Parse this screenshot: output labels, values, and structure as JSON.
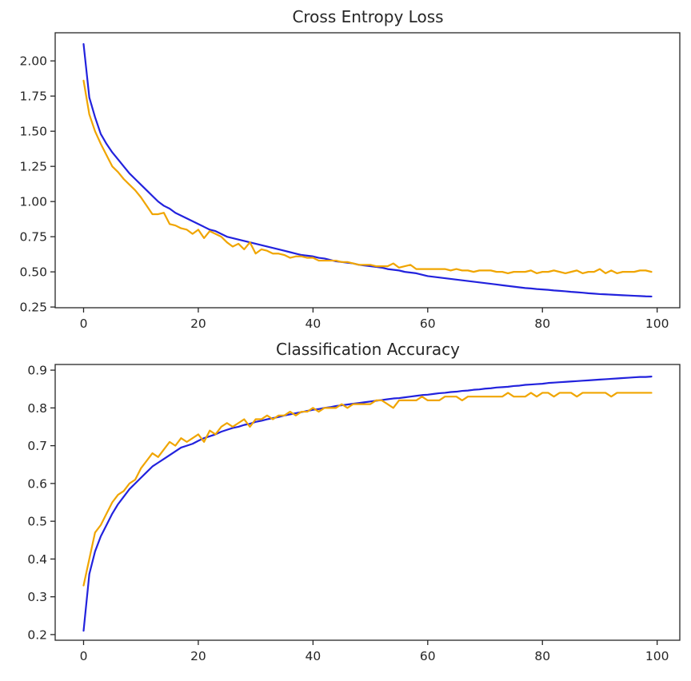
{
  "chart_data": [
    {
      "type": "line",
      "title": "Cross Entropy Loss",
      "xlabel": "",
      "ylabel": "",
      "xlim": [
        -4.95,
        103.95
      ],
      "ylim": [
        0.245,
        2.2
      ],
      "xticks": [
        0,
        20,
        40,
        60,
        80,
        100
      ],
      "xtick_labels": [
        "0",
        "20",
        "40",
        "60",
        "80",
        "100"
      ],
      "yticks": [
        0.25,
        0.5,
        0.75,
        1.0,
        1.25,
        1.5,
        1.75,
        2.0
      ],
      "ytick_labels": [
        "0.25",
        "0.50",
        "0.75",
        "1.00",
        "1.25",
        "1.50",
        "1.75",
        "2.00"
      ],
      "grid": false,
      "series": [
        {
          "color": "#2222dd",
          "x": [
            0,
            1,
            2,
            3,
            4,
            5,
            6,
            7,
            8,
            9,
            10,
            11,
            12,
            13,
            14,
            15,
            16,
            17,
            18,
            19,
            20,
            21,
            22,
            23,
            24,
            25,
            26,
            27,
            28,
            29,
            30,
            31,
            32,
            33,
            34,
            35,
            36,
            37,
            38,
            39,
            40,
            41,
            42,
            43,
            44,
            45,
            46,
            47,
            48,
            49,
            50,
            51,
            52,
            53,
            54,
            55,
            56,
            57,
            58,
            59,
            60,
            61,
            62,
            63,
            64,
            65,
            66,
            67,
            68,
            69,
            70,
            71,
            72,
            73,
            74,
            75,
            76,
            77,
            78,
            79,
            80,
            81,
            82,
            83,
            84,
            85,
            86,
            87,
            88,
            89,
            90,
            91,
            92,
            93,
            94,
            95,
            96,
            97,
            98,
            99
          ],
          "y": [
            2.12,
            1.74,
            1.6,
            1.48,
            1.41,
            1.35,
            1.3,
            1.25,
            1.2,
            1.16,
            1.12,
            1.08,
            1.04,
            1.0,
            0.97,
            0.95,
            0.92,
            0.9,
            0.88,
            0.86,
            0.84,
            0.82,
            0.8,
            0.79,
            0.77,
            0.75,
            0.74,
            0.73,
            0.72,
            0.71,
            0.7,
            0.69,
            0.68,
            0.67,
            0.66,
            0.65,
            0.64,
            0.63,
            0.62,
            0.615,
            0.61,
            0.6,
            0.595,
            0.585,
            0.575,
            0.57,
            0.565,
            0.56,
            0.55,
            0.545,
            0.54,
            0.535,
            0.53,
            0.52,
            0.515,
            0.51,
            0.5,
            0.495,
            0.49,
            0.48,
            0.47,
            0.465,
            0.46,
            0.455,
            0.45,
            0.445,
            0.44,
            0.435,
            0.43,
            0.425,
            0.42,
            0.415,
            0.41,
            0.405,
            0.4,
            0.395,
            0.39,
            0.385,
            0.382,
            0.378,
            0.375,
            0.372,
            0.368,
            0.365,
            0.362,
            0.358,
            0.355,
            0.352,
            0.348,
            0.345,
            0.342,
            0.34,
            0.338,
            0.336,
            0.334,
            0.332,
            0.33,
            0.328,
            0.326,
            0.325
          ]
        },
        {
          "color": "#f0a500",
          "x": [
            0,
            1,
            2,
            3,
            4,
            5,
            6,
            7,
            8,
            9,
            10,
            11,
            12,
            13,
            14,
            15,
            16,
            17,
            18,
            19,
            20,
            21,
            22,
            23,
            24,
            25,
            26,
            27,
            28,
            29,
            30,
            31,
            32,
            33,
            34,
            35,
            36,
            37,
            38,
            39,
            40,
            41,
            42,
            43,
            44,
            45,
            46,
            47,
            48,
            49,
            50,
            51,
            52,
            53,
            54,
            55,
            56,
            57,
            58,
            59,
            60,
            61,
            62,
            63,
            64,
            65,
            66,
            67,
            68,
            69,
            70,
            71,
            72,
            73,
            74,
            75,
            76,
            77,
            78,
            79,
            80,
            81,
            82,
            83,
            84,
            85,
            86,
            87,
            88,
            89,
            90,
            91,
            92,
            93,
            94,
            95,
            96,
            97,
            98,
            99
          ],
          "y": [
            1.86,
            1.62,
            1.5,
            1.41,
            1.33,
            1.25,
            1.21,
            1.16,
            1.12,
            1.08,
            1.03,
            0.97,
            0.91,
            0.91,
            0.92,
            0.84,
            0.83,
            0.81,
            0.8,
            0.77,
            0.8,
            0.74,
            0.79,
            0.77,
            0.75,
            0.71,
            0.68,
            0.7,
            0.66,
            0.71,
            0.63,
            0.66,
            0.65,
            0.63,
            0.63,
            0.62,
            0.6,
            0.61,
            0.61,
            0.6,
            0.6,
            0.58,
            0.58,
            0.58,
            0.58,
            0.57,
            0.57,
            0.56,
            0.55,
            0.55,
            0.55,
            0.54,
            0.54,
            0.54,
            0.56,
            0.53,
            0.54,
            0.55,
            0.52,
            0.52,
            0.52,
            0.52,
            0.52,
            0.52,
            0.51,
            0.52,
            0.51,
            0.51,
            0.5,
            0.51,
            0.51,
            0.51,
            0.5,
            0.5,
            0.49,
            0.5,
            0.5,
            0.5,
            0.51,
            0.49,
            0.5,
            0.5,
            0.51,
            0.5,
            0.49,
            0.5,
            0.51,
            0.49,
            0.5,
            0.5,
            0.52,
            0.49,
            0.51,
            0.49,
            0.5,
            0.5,
            0.5,
            0.51,
            0.51,
            0.5
          ]
        }
      ]
    },
    {
      "type": "line",
      "title": "Classification Accuracy",
      "xlabel": "",
      "ylabel": "",
      "xlim": [
        -4.95,
        103.95
      ],
      "ylim": [
        0.185,
        0.915
      ],
      "xticks": [
        0,
        20,
        40,
        60,
        80,
        100
      ],
      "xtick_labels": [
        "0",
        "20",
        "40",
        "60",
        "80",
        "100"
      ],
      "yticks": [
        0.2,
        0.3,
        0.4,
        0.5,
        0.6,
        0.7,
        0.8,
        0.9
      ],
      "ytick_labels": [
        "0.2",
        "0.3",
        "0.4",
        "0.5",
        "0.6",
        "0.7",
        "0.8",
        "0.9"
      ],
      "grid": false,
      "series": [
        {
          "color": "#2222dd",
          "x": [
            0,
            1,
            2,
            3,
            4,
            5,
            6,
            7,
            8,
            9,
            10,
            11,
            12,
            13,
            14,
            15,
            16,
            17,
            18,
            19,
            20,
            21,
            22,
            23,
            24,
            25,
            26,
            27,
            28,
            29,
            30,
            31,
            32,
            33,
            34,
            35,
            36,
            37,
            38,
            39,
            40,
            41,
            42,
            43,
            44,
            45,
            46,
            47,
            48,
            49,
            50,
            51,
            52,
            53,
            54,
            55,
            56,
            57,
            58,
            59,
            60,
            61,
            62,
            63,
            64,
            65,
            66,
            67,
            68,
            69,
            70,
            71,
            72,
            73,
            74,
            75,
            76,
            77,
            78,
            79,
            80,
            81,
            82,
            83,
            84,
            85,
            86,
            87,
            88,
            89,
            90,
            91,
            92,
            93,
            94,
            95,
            96,
            97,
            98,
            99
          ],
          "y": [
            0.21,
            0.36,
            0.42,
            0.46,
            0.49,
            0.52,
            0.545,
            0.565,
            0.585,
            0.6,
            0.615,
            0.63,
            0.645,
            0.655,
            0.665,
            0.675,
            0.685,
            0.695,
            0.7,
            0.705,
            0.713,
            0.72,
            0.725,
            0.73,
            0.737,
            0.742,
            0.747,
            0.75,
            0.755,
            0.758,
            0.763,
            0.766,
            0.77,
            0.773,
            0.776,
            0.78,
            0.783,
            0.786,
            0.789,
            0.792,
            0.795,
            0.797,
            0.8,
            0.802,
            0.805,
            0.807,
            0.809,
            0.811,
            0.813,
            0.815,
            0.817,
            0.819,
            0.821,
            0.823,
            0.825,
            0.826,
            0.828,
            0.83,
            0.832,
            0.834,
            0.835,
            0.837,
            0.839,
            0.84,
            0.842,
            0.843,
            0.845,
            0.846,
            0.848,
            0.849,
            0.851,
            0.852,
            0.854,
            0.855,
            0.856,
            0.858,
            0.859,
            0.861,
            0.862,
            0.863,
            0.864,
            0.866,
            0.867,
            0.868,
            0.869,
            0.87,
            0.871,
            0.872,
            0.873,
            0.874,
            0.875,
            0.876,
            0.877,
            0.878,
            0.879,
            0.88,
            0.881,
            0.882,
            0.882,
            0.883
          ]
        },
        {
          "color": "#f0a500",
          "x": [
            0,
            1,
            2,
            3,
            4,
            5,
            6,
            7,
            8,
            9,
            10,
            11,
            12,
            13,
            14,
            15,
            16,
            17,
            18,
            19,
            20,
            21,
            22,
            23,
            24,
            25,
            26,
            27,
            28,
            29,
            30,
            31,
            32,
            33,
            34,
            35,
            36,
            37,
            38,
            39,
            40,
            41,
            42,
            43,
            44,
            45,
            46,
            47,
            48,
            49,
            50,
            51,
            52,
            53,
            54,
            55,
            56,
            57,
            58,
            59,
            60,
            61,
            62,
            63,
            64,
            65,
            66,
            67,
            68,
            69,
            70,
            71,
            72,
            73,
            74,
            75,
            76,
            77,
            78,
            79,
            80,
            81,
            82,
            83,
            84,
            85,
            86,
            87,
            88,
            89,
            90,
            91,
            92,
            93,
            94,
            95,
            96,
            97,
            98,
            99
          ],
          "y": [
            0.33,
            0.4,
            0.47,
            0.49,
            0.52,
            0.55,
            0.57,
            0.58,
            0.6,
            0.61,
            0.64,
            0.66,
            0.68,
            0.67,
            0.69,
            0.71,
            0.7,
            0.72,
            0.71,
            0.72,
            0.73,
            0.71,
            0.74,
            0.73,
            0.75,
            0.76,
            0.75,
            0.76,
            0.77,
            0.75,
            0.77,
            0.77,
            0.78,
            0.77,
            0.78,
            0.78,
            0.79,
            0.78,
            0.79,
            0.79,
            0.8,
            0.79,
            0.8,
            0.8,
            0.8,
            0.81,
            0.8,
            0.81,
            0.81,
            0.81,
            0.81,
            0.82,
            0.82,
            0.81,
            0.8,
            0.82,
            0.82,
            0.82,
            0.82,
            0.83,
            0.82,
            0.82,
            0.82,
            0.83,
            0.83,
            0.83,
            0.82,
            0.83,
            0.83,
            0.83,
            0.83,
            0.83,
            0.83,
            0.83,
            0.84,
            0.83,
            0.83,
            0.83,
            0.84,
            0.83,
            0.84,
            0.84,
            0.83,
            0.84,
            0.84,
            0.84,
            0.83,
            0.84,
            0.84,
            0.84,
            0.84,
            0.84,
            0.83,
            0.84,
            0.84,
            0.84,
            0.84,
            0.84,
            0.84,
            0.84
          ]
        }
      ]
    }
  ]
}
